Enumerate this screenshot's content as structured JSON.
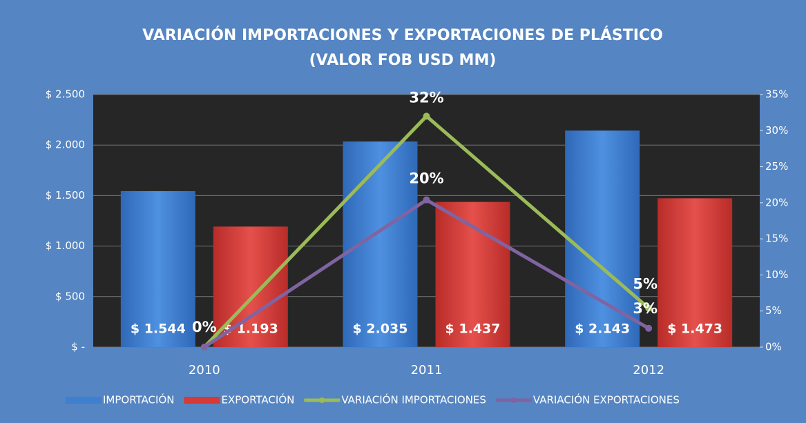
{
  "chart_data": {
    "type": "bar_line",
    "title": [
      "VARIACIÓN IMPORTACIONES Y EXPORTACIONES DE PLÁSTICO",
      "(VALOR FOB USD MM)"
    ],
    "categories": [
      "2010",
      "2011",
      "2012"
    ],
    "series": [
      {
        "name": "IMPORTACIÓN",
        "type": "bar",
        "color": "#3f7fd0",
        "values": [
          1544,
          2035,
          2143
        ],
        "value_labels": [
          "$ 1.544",
          "$ 2.035",
          "$ 2.143"
        ]
      },
      {
        "name": "EXPORTACIÓN",
        "type": "bar",
        "color": "#d63a36",
        "values": [
          1193,
          1437,
          1473
        ],
        "value_labels": [
          "$ 1.193",
          "$ 1.437",
          "$ 1.473"
        ]
      },
      {
        "name": "VARIACIÓN IMPORTACIONES",
        "type": "line",
        "axis": "y2",
        "color": "#9bbb59",
        "values": [
          0,
          32,
          5.4
        ],
        "value_labels": [
          "0%",
          "32%",
          "5%"
        ]
      },
      {
        "name": "VARIACIÓN EXPORTACIONES",
        "type": "line",
        "axis": "y2",
        "color": "#8064a2",
        "values": [
          0,
          20.4,
          2.6
        ],
        "value_labels": [
          null,
          "20%",
          "3%"
        ]
      }
    ],
    "ylim": [
      0,
      2500
    ],
    "yticks": [
      {
        "value": 0,
        "label": "$ -"
      },
      {
        "value": 500,
        "label": "$ 500"
      },
      {
        "value": 1000,
        "label": "$ 1.000"
      },
      {
        "value": 1500,
        "label": "$ 1.500"
      },
      {
        "value": 2000,
        "label": "$ 2.000"
      },
      {
        "value": 2500,
        "label": "$ 2.500"
      }
    ],
    "y2lim": [
      0,
      35
    ],
    "y2ticks": [
      {
        "value": 0,
        "label": "0%"
      },
      {
        "value": 5,
        "label": "5%"
      },
      {
        "value": 10,
        "label": "10%"
      },
      {
        "value": 15,
        "label": "15%"
      },
      {
        "value": 20,
        "label": "20%"
      },
      {
        "value": 25,
        "label": "25%"
      },
      {
        "value": 30,
        "label": "30%"
      },
      {
        "value": 35,
        "label": "35%"
      }
    ],
    "grid": true
  }
}
